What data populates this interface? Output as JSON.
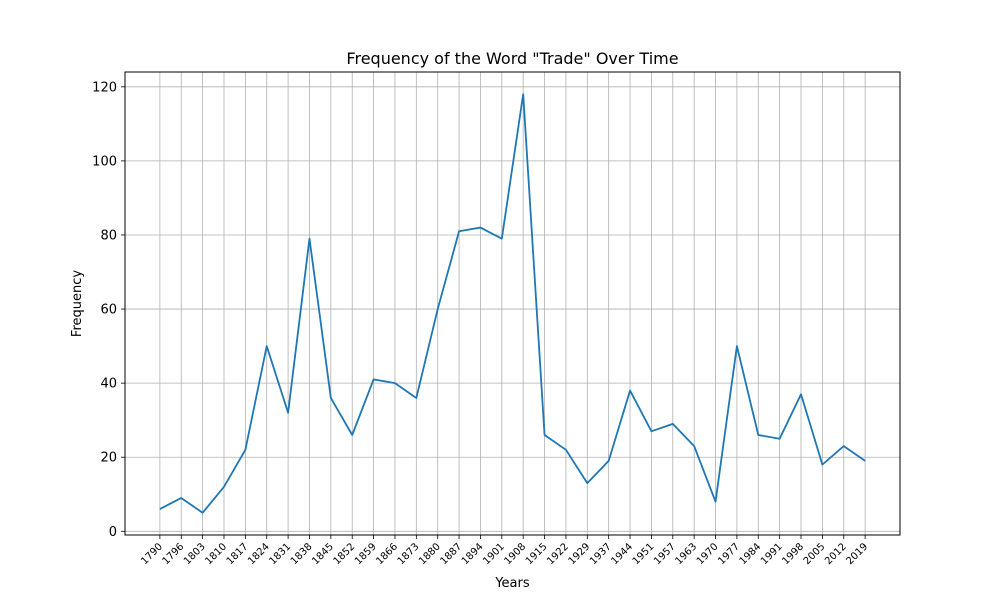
{
  "chart_data": {
    "type": "line",
    "title": "Frequency of the Word \"Trade\" Over Time",
    "xlabel": "Years",
    "ylabel": "Frequency",
    "ylim": [
      -1,
      124
    ],
    "yticks": [
      0,
      20,
      40,
      60,
      80,
      100,
      120
    ],
    "grid": true,
    "line_color": "#1f77b4",
    "categories": [
      "1790",
      "1796",
      "1803",
      "1810",
      "1817",
      "1824",
      "1831",
      "1838",
      "1845",
      "1852",
      "1859",
      "1866",
      "1873",
      "1880",
      "1887",
      "1894",
      "1901",
      "1908",
      "1915",
      "1922",
      "1929",
      "1937",
      "1944",
      "1951",
      "1957",
      "1963",
      "1970",
      "1977",
      "1984",
      "1991",
      "1998",
      "2005",
      "2012",
      "2019"
    ],
    "series": [
      {
        "values": [
          6,
          9,
          5,
          12,
          22,
          50,
          32,
          79,
          36,
          26,
          41,
          40,
          36,
          60,
          81,
          82,
          79,
          118,
          26,
          22,
          13,
          19,
          38,
          27,
          29,
          23,
          8,
          50,
          26,
          25,
          37,
          18,
          23,
          19
        ]
      }
    ]
  }
}
